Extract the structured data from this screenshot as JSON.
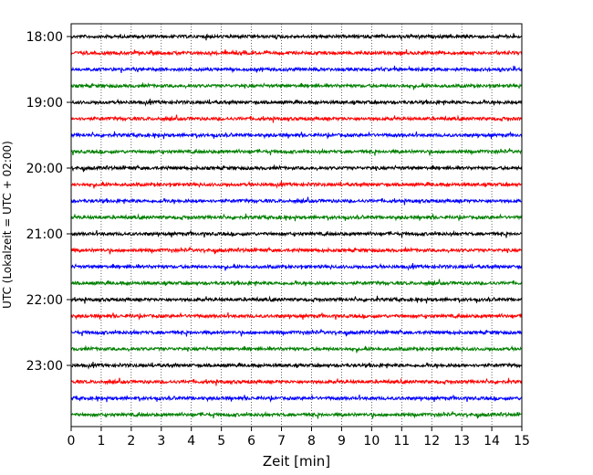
{
  "chart_data": {
    "type": "line",
    "chart_kind": "helicorder",
    "xlabel": "Zeit  [min]",
    "ylabel": "UTC (Lokalzeit = UTC + 02:00)",
    "xlim": [
      0,
      15
    ],
    "x_ticks": [
      "0",
      "1",
      "2",
      "3",
      "4",
      "5",
      "6",
      "7",
      "8",
      "9",
      "10",
      "11",
      "12",
      "13",
      "14",
      "15"
    ],
    "y_ticks": [
      "18:00",
      "19:00",
      "20:00",
      "21:00",
      "22:00",
      "23:00"
    ],
    "trace_interval_min": 15,
    "start_time": "18:00",
    "trace_count": 24,
    "trace_colors": [
      "#000000",
      "#ff0000",
      "#0000ff",
      "#008000"
    ],
    "vertical_grid": true,
    "grid_style": "dotted"
  }
}
